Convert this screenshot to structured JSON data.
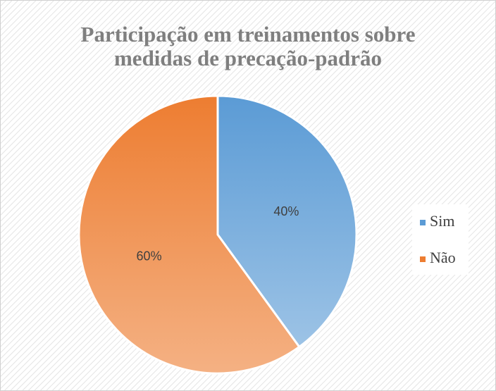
{
  "chart_data": {
    "type": "pie",
    "title": "Participação em treinamentos sobre medidas de precação-padrão",
    "categories": [
      "Sim",
      "Não"
    ],
    "values": [
      40,
      60
    ],
    "value_labels": [
      "40%",
      "60%"
    ],
    "colors": [
      "#5b9bd5",
      "#ed7d31"
    ],
    "legend": "right"
  }
}
